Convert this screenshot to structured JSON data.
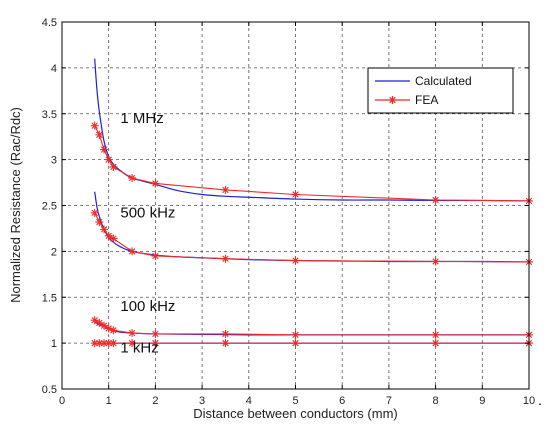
{
  "chart_data": {
    "type": "line",
    "title": "",
    "xlabel": "Distance between conductors (mm)",
    "ylabel": "Normalized Resistance (Rac/Rdc)",
    "xlim": [
      0,
      10
    ],
    "ylim": [
      0.5,
      4.5
    ],
    "xticks": [
      "0",
      "1",
      "2",
      "3",
      "4",
      "5",
      "6",
      "7",
      "8",
      "9",
      "10"
    ],
    "yticks": [
      "0.5",
      "1",
      "1.5",
      "2",
      "2.5",
      "3",
      "3.5",
      "4",
      "4.5"
    ],
    "grid": true,
    "legend_position": "top-right",
    "legend": [
      "Calculated",
      "FEA"
    ],
    "colors": {
      "calculated": "#1f1fd6",
      "fea": "#ee2a2a"
    },
    "annotations": [
      {
        "text": "1 MHz",
        "x": 1.25,
        "y": 3.4
      },
      {
        "text": "500 kHz",
        "x": 1.25,
        "y": 2.37
      },
      {
        "text": "100 kHz",
        "x": 1.25,
        "y": 1.35
      },
      {
        "text": "1 kHz",
        "x": 1.25,
        "y": 0.9
      }
    ],
    "series": [
      {
        "name": "Calculated",
        "curves": [
          {
            "x": [
              0.7,
              0.75,
              0.8,
              0.9,
              1.0,
              1.1,
              1.25,
              1.5,
              2.0,
              2.5,
              3.0,
              3.5,
              4.0,
              5.0,
              6.0,
              7.0,
              8.0,
              9.0,
              10.0
            ],
            "y": [
              4.1,
              3.75,
              3.52,
              3.2,
              3.03,
              2.95,
              2.88,
              2.8,
              2.73,
              2.66,
              2.62,
              2.6,
              2.59,
              2.57,
              2.56,
              2.56,
              2.555,
              2.555,
              2.55
            ]
          },
          {
            "x": [
              0.7,
              0.75,
              0.8,
              0.9,
              1.0,
              1.1,
              1.25,
              1.5,
              2.0,
              2.5,
              3.0,
              3.5,
              4.0,
              5.0,
              6.0,
              7.0,
              8.0,
              9.0,
              10.0
            ],
            "y": [
              2.65,
              2.48,
              2.38,
              2.24,
              2.15,
              2.1,
              2.05,
              2.0,
              1.96,
              1.94,
              1.93,
              1.92,
              1.91,
              1.9,
              1.895,
              1.89,
              1.89,
              1.89,
              1.885
            ]
          },
          {
            "x": [
              0.7,
              0.8,
              0.9,
              1.0,
              1.1,
              1.25,
              1.5,
              2.0,
              3.0,
              4.0,
              5.0,
              6.0,
              7.0,
              8.0,
              9.0,
              10.0
            ],
            "y": [
              1.23,
              1.2,
              1.18,
              1.16,
              1.14,
              1.12,
              1.11,
              1.1,
              1.095,
              1.09,
              1.09,
              1.09,
              1.09,
              1.09,
              1.09,
              1.09
            ]
          },
          {
            "x": [
              0.7,
              10.0
            ],
            "y": [
              1.0,
              1.0
            ]
          }
        ]
      },
      {
        "name": "FEA",
        "curves": [
          {
            "x": [
              0.7,
              0.8,
              0.9,
              1.0,
              1.1,
              1.5,
              2.0,
              3.5,
              5.0,
              8.0,
              10.0
            ],
            "y": [
              3.37,
              3.27,
              3.11,
              3.0,
              2.92,
              2.8,
              2.74,
              2.67,
              2.62,
              2.56,
              2.55
            ]
          },
          {
            "x": [
              0.7,
              0.8,
              0.9,
              1.0,
              1.1,
              1.5,
              2.0,
              3.5,
              5.0,
              8.0,
              10.0
            ],
            "y": [
              2.42,
              2.32,
              2.24,
              2.17,
              2.14,
              2.0,
              1.95,
              1.92,
              1.9,
              1.89,
              1.885
            ]
          },
          {
            "x": [
              0.7,
              0.8,
              0.9,
              1.0,
              1.1,
              1.5,
              2.0,
              3.5,
              5.0,
              8.0,
              10.0
            ],
            "y": [
              1.25,
              1.22,
              1.19,
              1.16,
              1.14,
              1.11,
              1.1,
              1.1,
              1.09,
              1.09,
              1.09
            ]
          },
          {
            "x": [
              0.7,
              0.8,
              0.9,
              1.0,
              1.1,
              1.5,
              2.0,
              3.5,
              5.0,
              8.0,
              10.0
            ],
            "y": [
              1.0,
              1.0,
              1.0,
              1.0,
              1.0,
              1.0,
              1.0,
              1.0,
              1.0,
              1.0,
              1.0
            ]
          }
        ]
      }
    ]
  }
}
